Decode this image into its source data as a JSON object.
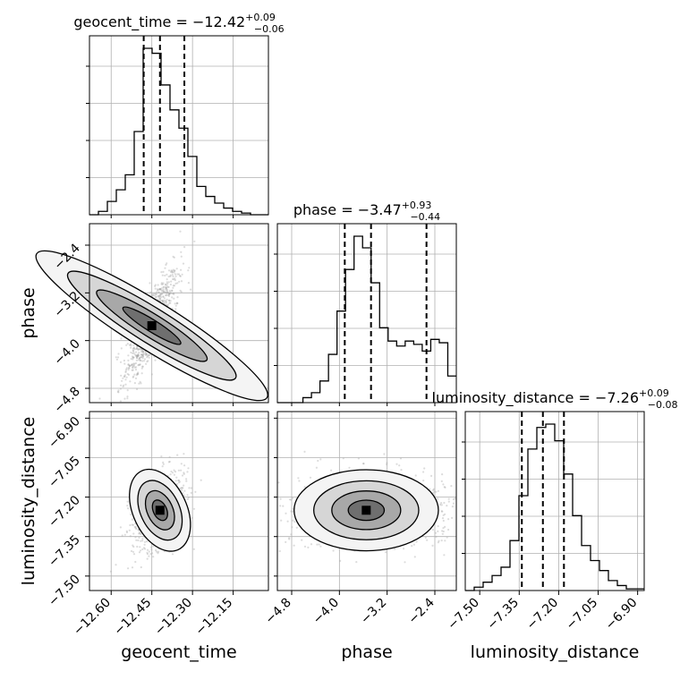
{
  "chart_data": {
    "type": "corner",
    "parameters": [
      "geocent_time",
      "phase",
      "luminosity_distance"
    ],
    "axis_labels": [
      "geocent_time",
      "phase",
      "luminosity_distance"
    ],
    "titles": [
      {
        "text": "geocent_time = −12.42",
        "sup": "+0.09",
        "sub": "−0.06"
      },
      {
        "text": "phase = −3.47",
        "sup": "+0.93",
        "sub": "−0.44"
      },
      {
        "text": "luminosity_distance = −7.26",
        "sup": "+0.09",
        "sub": "−0.08"
      }
    ],
    "ranges": [
      [
        -12.68,
        -12.02
      ],
      [
        -5.04,
        -2.04
      ],
      [
        -7.555,
        -6.875
      ]
    ],
    "ticks": [
      {
        "values": [
          -12.6,
          -12.45,
          -12.3,
          -12.15
        ],
        "labels": [
          "−12.60",
          "−12.45",
          "−12.30",
          "−12.15"
        ]
      },
      {
        "values": [
          -4.8,
          -4.0,
          -3.2,
          -2.4
        ],
        "labels": [
          "−4.8",
          "−4.0",
          "−3.2",
          "−2.4"
        ]
      },
      {
        "values": [
          -7.5,
          -7.35,
          -7.2,
          -7.05,
          -6.9
        ],
        "labels": [
          "−7.50",
          "−7.35",
          "−7.20",
          "−7.05",
          "−6.90"
        ]
      }
    ],
    "quantiles": [
      [
        -12.48,
        -12.42,
        -12.33
      ],
      [
        -3.91,
        -3.47,
        -2.54
      ],
      [
        -7.34,
        -7.26,
        -7.18
      ]
    ],
    "histograms": [
      {
        "bin_edges_range": [
          -12.68,
          -12.02
        ],
        "counts": [
          0,
          2,
          8,
          15,
          24,
          50,
          100,
          97,
          78,
          63,
          52,
          35,
          17,
          11,
          7,
          4,
          2,
          1,
          0,
          0
        ]
      },
      {
        "bin_edges_range": [
          -5.04,
          -2.04
        ],
        "counts": [
          0,
          0,
          0,
          3,
          6,
          13,
          29,
          55,
          80,
          100,
          93,
          72,
          45,
          37,
          34,
          37,
          35,
          31,
          38,
          36,
          16
        ]
      },
      {
        "bin_edges_range": [
          -7.555,
          -6.875
        ],
        "counts": [
          0,
          2,
          5,
          9,
          14,
          30,
          57,
          85,
          98,
          100,
          90,
          70,
          45,
          27,
          18,
          12,
          6,
          3,
          1,
          1
        ]
      }
    ],
    "grid": true
  }
}
